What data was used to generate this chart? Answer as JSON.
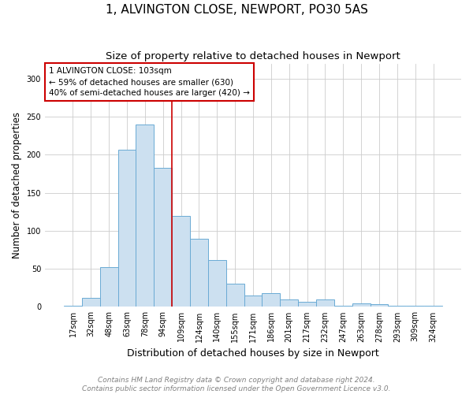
{
  "title": "1, ALVINGTON CLOSE, NEWPORT, PO30 5AS",
  "subtitle": "Size of property relative to detached houses in Newport",
  "xlabel": "Distribution of detached houses by size in Newport",
  "ylabel": "Number of detached properties",
  "categories": [
    "17sqm",
    "32sqm",
    "48sqm",
    "63sqm",
    "78sqm",
    "94sqm",
    "109sqm",
    "124sqm",
    "140sqm",
    "155sqm",
    "171sqm",
    "186sqm",
    "201sqm",
    "217sqm",
    "232sqm",
    "247sqm",
    "263sqm",
    "278sqm",
    "293sqm",
    "309sqm",
    "324sqm"
  ],
  "values": [
    2,
    12,
    52,
    207,
    240,
    183,
    120,
    90,
    62,
    30,
    15,
    18,
    10,
    7,
    10,
    2,
    5,
    4,
    2,
    1,
    2
  ],
  "bar_color": "#cce0f0",
  "bar_edge_color": "#6aaad4",
  "vline_index": 6,
  "vline_color": "#cc0000",
  "annotation_text": "1 ALVINGTON CLOSE: 103sqm\n← 59% of detached houses are smaller (630)\n40% of semi-detached houses are larger (420) →",
  "annotation_box_color": "white",
  "annotation_box_edge": "#cc0000",
  "ylim": [
    0,
    320
  ],
  "yticks": [
    0,
    50,
    100,
    150,
    200,
    250,
    300
  ],
  "footer_line1": "Contains HM Land Registry data © Crown copyright and database right 2024.",
  "footer_line2": "Contains public sector information licensed under the Open Government Licence v3.0.",
  "title_fontsize": 11,
  "subtitle_fontsize": 9.5,
  "xlabel_fontsize": 9,
  "ylabel_fontsize": 8.5,
  "tick_fontsize": 7,
  "annotation_fontsize": 7.5,
  "footer_fontsize": 6.5
}
